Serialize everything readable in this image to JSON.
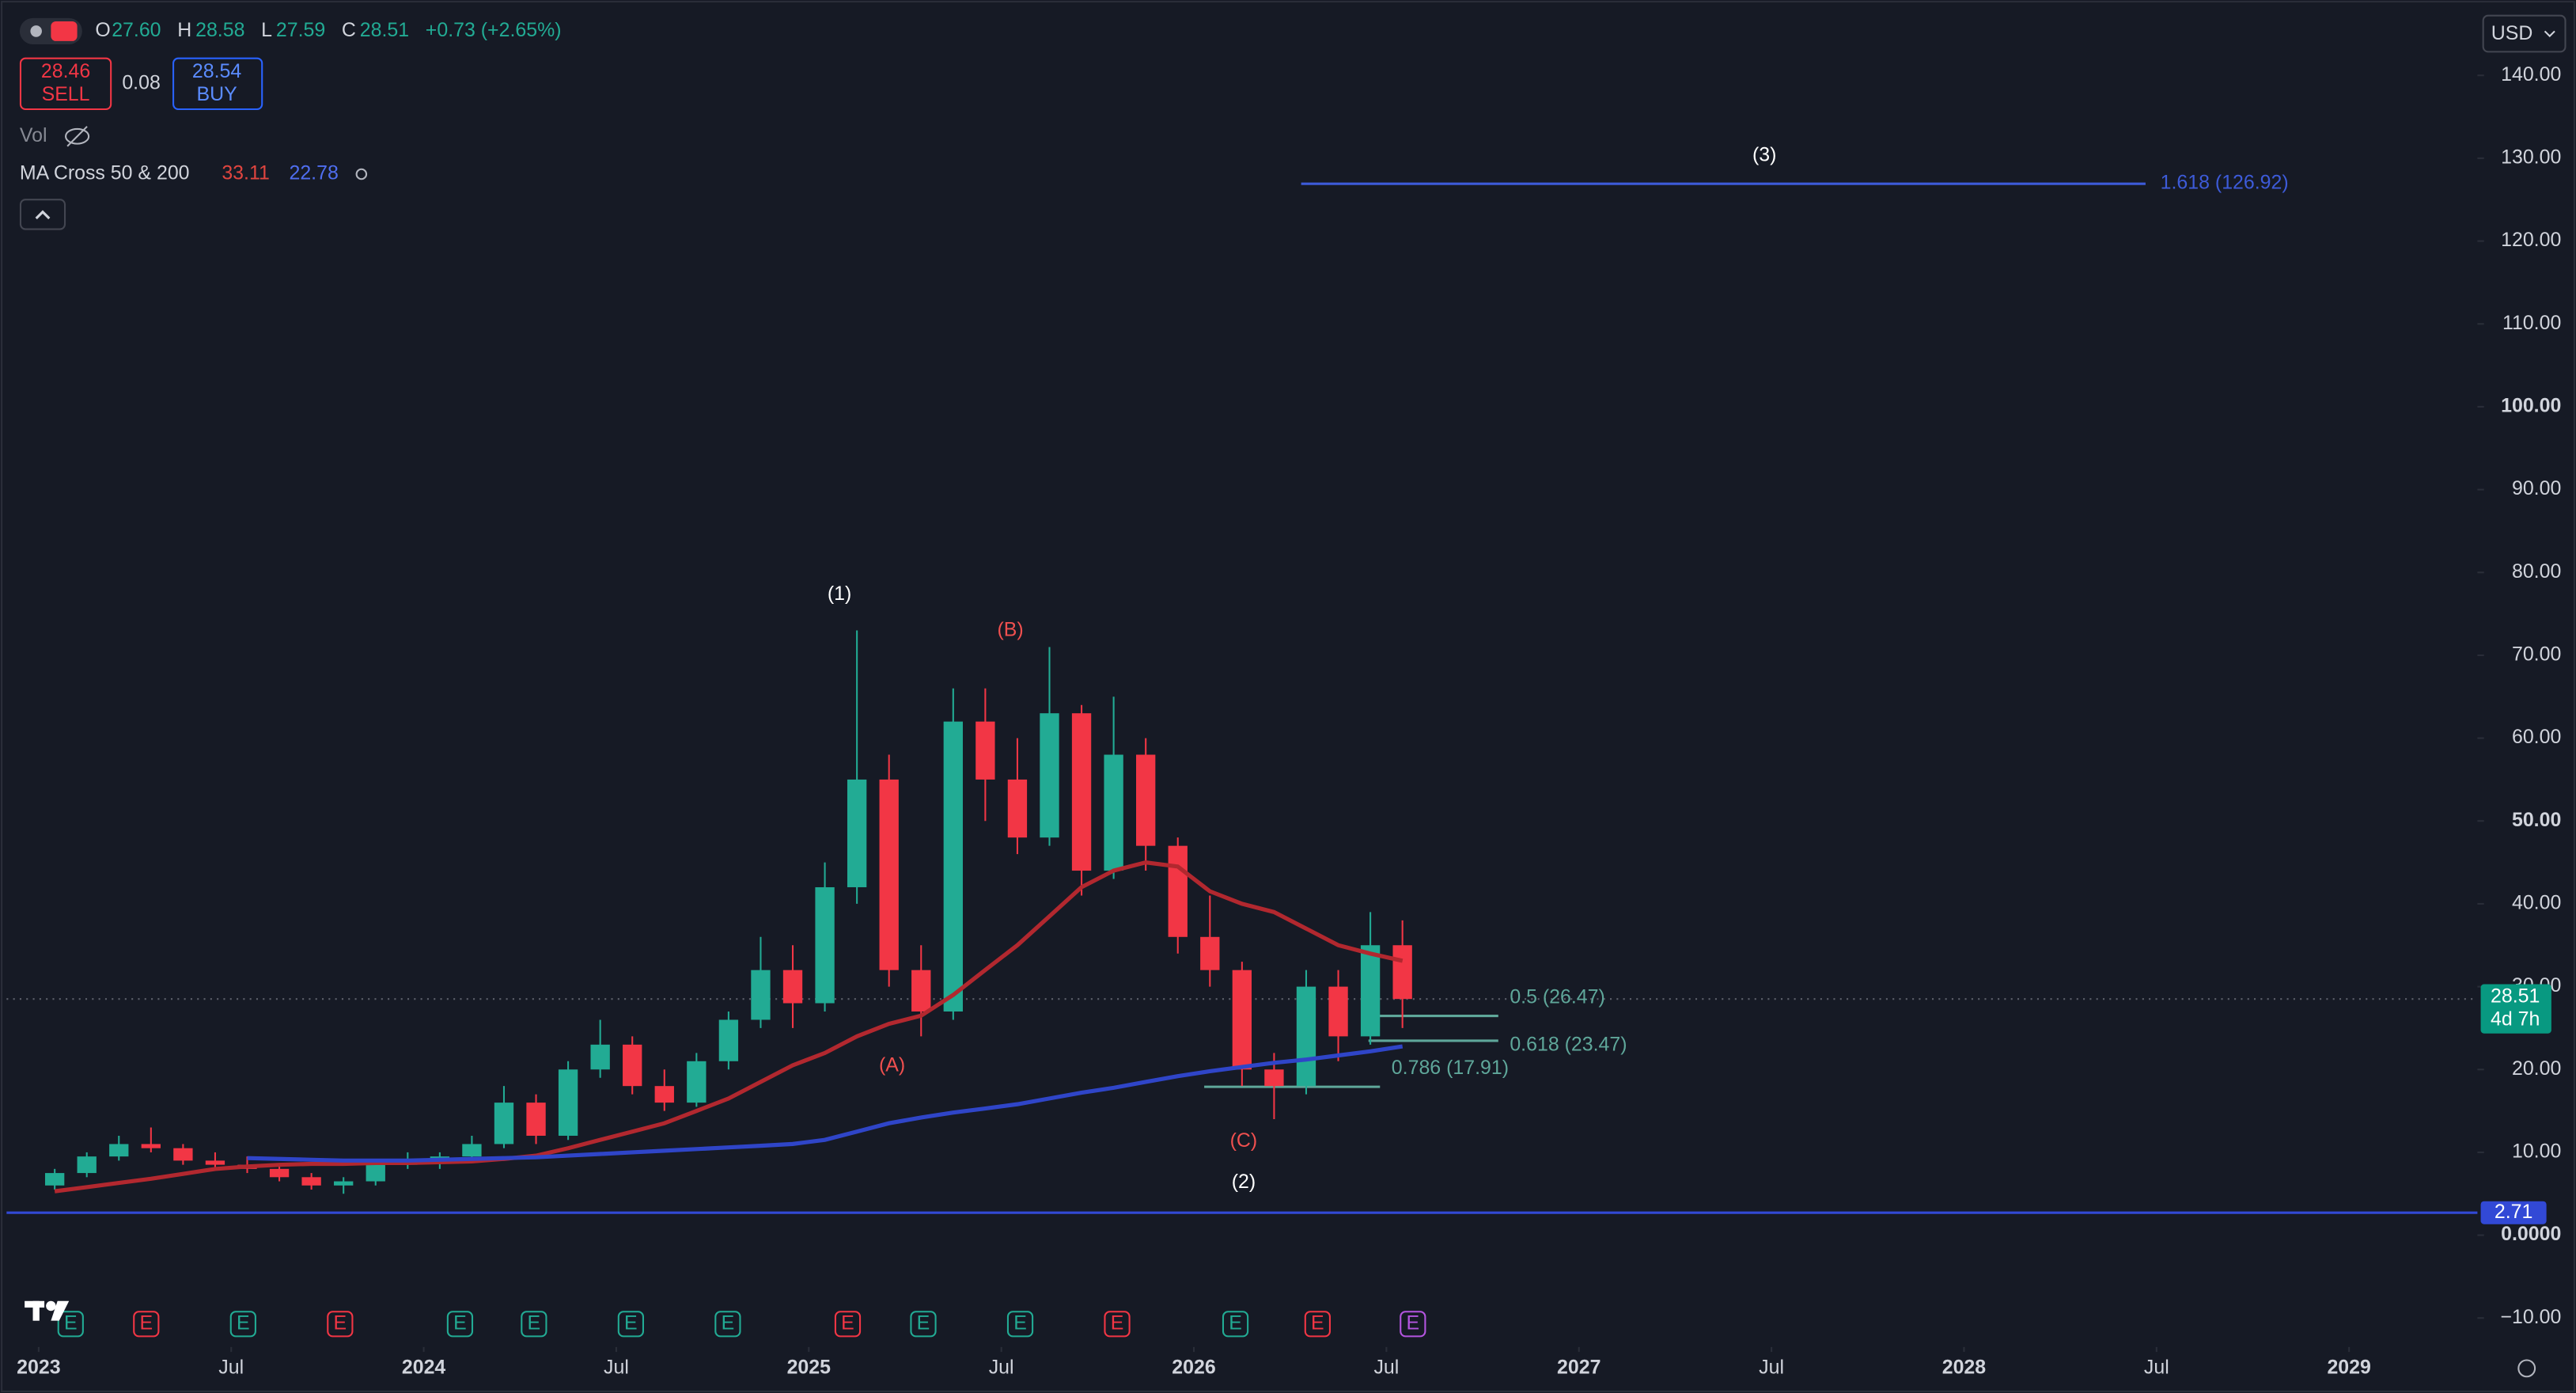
{
  "header": {
    "open_label": "O",
    "open": "27.60",
    "high_label": "H",
    "high": "28.58",
    "low_label": "L",
    "low": "27.59",
    "close_label": "C",
    "change": "+0.73 (+2.65%)"
  },
  "trade": {
    "sell_price": "28.46",
    "sell_label": "SELL",
    "spread": "0.08",
    "buy_price": "28.54",
    "buy_label": "BUY"
  },
  "volume_label": "Vol",
  "indicator_label": "MA Cross 50 & 200",
  "currency": "USD",
  "countdown": "4d 7h",
  "chart_data": {
    "type": "candlestick",
    "x": [
      "2023-01",
      "2023-02",
      "2023-03",
      "2023-04",
      "2023-05",
      "2023-06",
      "2023-07",
      "2023-08",
      "2023-09",
      "2023-10",
      "2023-11",
      "2023-12",
      "2024-01",
      "2024-02",
      "2024-03",
      "2024-04",
      "2024-05",
      "2024-06",
      "2024-07",
      "2024-08",
      "2024-09",
      "2024-10",
      "2024-11",
      "2024-12",
      "2025-01",
      "2025-02",
      "2025-03",
      "2025-04",
      "2025-05",
      "2025-06",
      "2025-07",
      "2025-08",
      "2025-09",
      "2025-10",
      "2025-11",
      "2025-12",
      "2026-01",
      "2026-02",
      "2026-03",
      "2026-04",
      "2026-05",
      "2026-06",
      "2026-07"
    ],
    "open": [
      6,
      7.5,
      9.5,
      11,
      10.5,
      9,
      8.5,
      8,
      7,
      6,
      6.5,
      8.5,
      9,
      9.5,
      11,
      16,
      12,
      20,
      23,
      18,
      16,
      21,
      26,
      32,
      28,
      42,
      55,
      32,
      27,
      62,
      55,
      48,
      63,
      44,
      58,
      47,
      36,
      32,
      20,
      18,
      30,
      24,
      35
    ],
    "high": [
      8,
      10,
      12,
      13,
      11,
      10,
      9.5,
      8.5,
      7.5,
      7,
      9,
      10,
      10,
      12,
      18,
      17,
      21,
      26,
      24,
      20,
      22,
      27,
      36,
      35,
      45,
      73,
      58,
      35,
      66,
      66,
      60,
      71,
      64,
      65,
      60,
      48,
      41,
      33,
      22,
      32,
      32,
      39,
      38
    ],
    "low": [
      5.5,
      7,
      9,
      10,
      8.5,
      8,
      7.5,
      6.5,
      5.5,
      5,
      6,
      8,
      8,
      9,
      10.5,
      11,
      11.5,
      19,
      17,
      15,
      15.5,
      20,
      25,
      25,
      27,
      40,
      30,
      24,
      26,
      50,
      46,
      47,
      41,
      43,
      44,
      34,
      30,
      18,
      14,
      17,
      21,
      23,
      25
    ],
    "close": [
      7.5,
      9.5,
      11,
      10.5,
      9,
      8.5,
      8,
      7,
      6,
      6.5,
      8.5,
      9,
      9.5,
      11,
      16,
      12,
      20,
      23,
      18,
      16,
      21,
      26,
      32,
      28,
      42,
      55,
      32,
      27,
      62,
      55,
      48,
      63,
      44,
      58,
      47,
      36,
      32,
      20,
      18,
      30,
      24,
      35,
      28.51
    ],
    "up_color": "#22ab94",
    "down_color": "#f23645",
    "series": [
      {
        "color": "#b2282f",
        "values": [
          5.3,
          5.8,
          6.3,
          6.8,
          7.4,
          8,
          8.3,
          8.5,
          8.6,
          8.6,
          8.7,
          8.7,
          8.8,
          8.9,
          9.2,
          9.6,
          10.5,
          11.5,
          12.5,
          13.5,
          15,
          16.5,
          18.5,
          20.5,
          22,
          24,
          25.5,
          26.5,
          29,
          32,
          35,
          38.5,
          42,
          44,
          45,
          44.5,
          41.5,
          40,
          39,
          37,
          35,
          34,
          33.11
        ]
      },
      {
        "color": "#2f45c8",
        "values": [
          null,
          null,
          null,
          null,
          null,
          null,
          9.3,
          9.2,
          9.1,
          9.0,
          9.0,
          9.0,
          9.1,
          9.2,
          9.3,
          9.4,
          9.6,
          9.8,
          10,
          10.2,
          10.4,
          10.6,
          10.8,
          11.0,
          11.5,
          12.5,
          13.5,
          14.2,
          14.8,
          15.3,
          15.8,
          16.5,
          17.2,
          17.8,
          18.5,
          19.2,
          19.8,
          20.3,
          20.8,
          21.2,
          21.7,
          22.2,
          22.78
        ]
      }
    ],
    "xlim": [
      "2022-12",
      "2029-05"
    ],
    "xticks": [
      {
        "value": "2023-01",
        "label": "2023"
      },
      {
        "value": "2023-07",
        "label": "Jul"
      },
      {
        "value": "2024-01",
        "label": "2024"
      },
      {
        "value": "2024-07",
        "label": "Jul"
      },
      {
        "value": "2025-01",
        "label": "2025"
      },
      {
        "value": "2025-07",
        "label": "Jul"
      },
      {
        "value": "2026-01",
        "label": "2026"
      },
      {
        "value": "2026-07",
        "label": "Jul"
      },
      {
        "value": "2027-01",
        "label": "2027"
      },
      {
        "value": "2027-07",
        "label": "Jul"
      },
      {
        "value": "2028-01",
        "label": "2028"
      },
      {
        "value": "2028-07",
        "label": "Jul"
      },
      {
        "value": "2029-01",
        "label": "2029"
      }
    ],
    "ylim": [
      -13.5,
      149.1
    ],
    "yticks": [
      {
        "value": -10,
        "label": "−10.00"
      },
      {
        "value": 0,
        "label": "0.0000"
      },
      {
        "value": 10,
        "label": "10.00"
      },
      {
        "value": 20,
        "label": "20.00"
      },
      {
        "value": 30,
        "label": "30.00"
      },
      {
        "value": 40,
        "label": "40.00"
      },
      {
        "value": 50,
        "label": "50.00"
      },
      {
        "value": 60,
        "label": "60.00"
      },
      {
        "value": 70,
        "label": "70.00"
      },
      {
        "value": 80,
        "label": "80.00"
      },
      {
        "value": 90,
        "label": "90.00"
      },
      {
        "value": 100,
        "label": "100.00"
      },
      {
        "value": 110,
        "label": "110.00"
      },
      {
        "value": 120,
        "label": "120.00"
      },
      {
        "value": 130,
        "label": "130.00"
      },
      {
        "value": 140,
        "label": "140.00"
      }
    ],
    "levels": [
      {
        "label": "1.618 (126.92)",
        "value": 126.92,
        "color": "#3d5bd9"
      },
      {
        "label": "0.5 (26.47)",
        "value": 26.47,
        "color": "#5fa79a"
      },
      {
        "label": "0.618 (23.47)",
        "value": 23.47,
        "color": "#5fa79a"
      },
      {
        "label": "0.786 (17.91)",
        "value": 17.91,
        "color": "#5fa79a"
      }
    ],
    "baseline": {
      "value": 2.71,
      "color": "#3249d6"
    },
    "waves": [
      {
        "label": "(1)",
        "color": "#ffffff"
      },
      {
        "label": "(B)",
        "color": "#f0504f"
      },
      {
        "label": "(A)",
        "color": "#f0504f"
      },
      {
        "label": "(C)",
        "color": "#f0504f"
      },
      {
        "label": "(2)",
        "color": "#ffffff"
      },
      {
        "label": "(3)",
        "color": "#ffffff"
      }
    ],
    "events": [
      {
        "label": "E",
        "color": "#22ab94"
      },
      {
        "label": "E",
        "color": "#f23645"
      },
      {
        "label": "E",
        "color": "#22ab94"
      },
      {
        "label": "E",
        "color": "#f23645"
      },
      {
        "label": "E",
        "color": "#22ab94"
      },
      {
        "label": "E",
        "color": "#22ab94"
      },
      {
        "label": "E",
        "color": "#22ab94"
      },
      {
        "label": "E",
        "color": "#22ab94"
      },
      {
        "label": "E",
        "color": "#f23645"
      },
      {
        "label": "E",
        "color": "#22ab94"
      },
      {
        "label": "E",
        "color": "#22ab94"
      },
      {
        "label": "E",
        "color": "#f23645"
      },
      {
        "label": "E",
        "color": "#22ab94"
      },
      {
        "label": "E",
        "color": "#f23645"
      },
      {
        "label": "E",
        "color": "#b455e0"
      }
    ]
  }
}
